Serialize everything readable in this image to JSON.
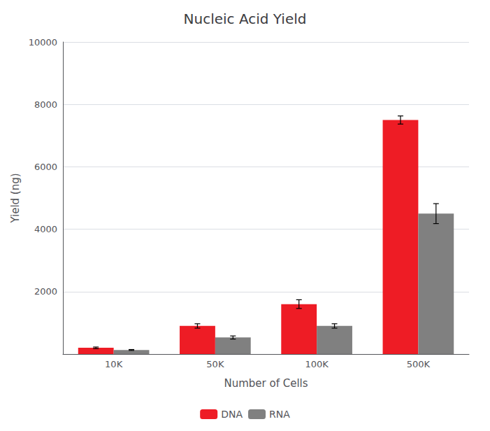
{
  "chart_data": {
    "type": "bar",
    "title": "Nucleic Acid Yield",
    "xlabel": "Number of Cells",
    "ylabel": "Yield (ng)",
    "categories": [
      "10K",
      "50K",
      "100K",
      "500K"
    ],
    "series": [
      {
        "name": "DNA",
        "color": "#ee1c25",
        "values": [
          200,
          900,
          1600,
          7500
        ],
        "errors": [
          25,
          70,
          140,
          130
        ]
      },
      {
        "name": "RNA",
        "color": "#808080",
        "values": [
          130,
          530,
          900,
          4500
        ],
        "errors": [
          15,
          50,
          70,
          320
        ]
      }
    ],
    "ylim": [
      0,
      10000
    ],
    "yticks": [
      2000,
      4000,
      6000,
      8000,
      10000
    ],
    "grid": true,
    "legend": "bottom"
  }
}
